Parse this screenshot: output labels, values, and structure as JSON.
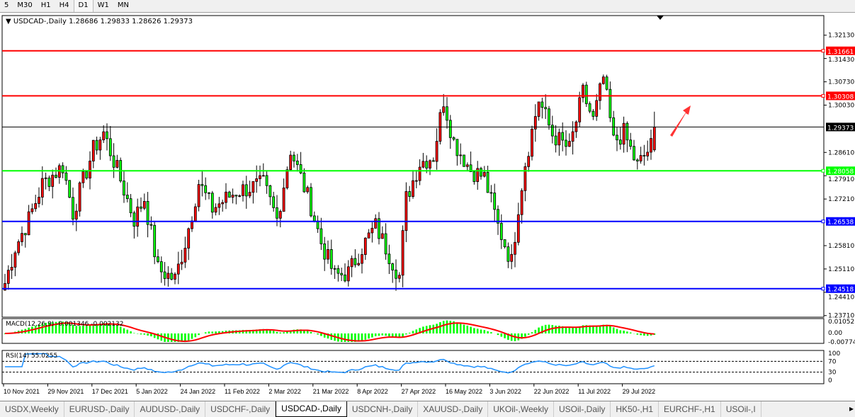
{
  "timeframes": [
    "5",
    "M30",
    "H1",
    "H4",
    "D1",
    "W1",
    "MN"
  ],
  "active_timeframe": "D1",
  "chart": {
    "symbol_label": "USDCAD-,Daily",
    "ohlc": "1.28686 1.29833 1.28626 1.29373"
  },
  "chart_data": {
    "type": "candlestick",
    "symbol": "USDCAD-",
    "period": "Daily",
    "price_ticks": [
      "1.32130",
      "1.31430",
      "1.30730",
      "1.30030",
      "1.28610",
      "1.27910",
      "1.27210",
      "1.25810",
      "1.25110",
      "1.24410",
      "1.23710"
    ],
    "ylim": [
      1.2371,
      1.3213
    ],
    "date_ticks": [
      "10 Nov 2021",
      "29 Nov 2021",
      "17 Dec 2021",
      "5 Jan 2022",
      "24 Jan 2022",
      "11 Feb 2022",
      "2 Mar 2022",
      "21 Mar 2022",
      "8 Apr 2022",
      "27 Apr 2022",
      "16 May 2022",
      "3 Jun 2022",
      "22 Jun 2022",
      "11 Jul 2022",
      "29 Jul 2022"
    ],
    "bar_count": 192,
    "close_keypoints": [
      [
        0,
        1.2468
      ],
      [
        3,
        1.2575
      ],
      [
        7,
        1.266
      ],
      [
        11,
        1.2766
      ],
      [
        17,
        1.282
      ],
      [
        20,
        1.268
      ],
      [
        26,
        1.287
      ],
      [
        29,
        1.292
      ],
      [
        33,
        1.2808
      ],
      [
        38,
        1.266
      ],
      [
        41,
        1.2723
      ],
      [
        45,
        1.251
      ],
      [
        50,
        1.248
      ],
      [
        53,
        1.259
      ],
      [
        57,
        1.277
      ],
      [
        61,
        1.2692
      ],
      [
        68,
        1.2744
      ],
      [
        76,
        1.2766
      ],
      [
        80,
        1.266
      ],
      [
        84,
        1.287
      ],
      [
        90,
        1.27
      ],
      [
        93,
        1.259
      ],
      [
        97,
        1.249
      ],
      [
        101,
        1.25
      ],
      [
        105,
        1.2575
      ],
      [
        109,
        1.264
      ],
      [
        116,
        1.249
      ],
      [
        118,
        1.2723
      ],
      [
        122,
        1.283
      ],
      [
        126,
        1.285
      ],
      [
        129,
        1.302
      ],
      [
        132,
        1.2893
      ],
      [
        137,
        1.2808
      ],
      [
        141,
        1.2787
      ],
      [
        145,
        1.264
      ],
      [
        149,
        1.2532
      ],
      [
        151,
        1.27
      ],
      [
        153,
        1.283
      ],
      [
        157,
        1.302
      ],
      [
        161,
        1.2915
      ],
      [
        166,
        1.287
      ],
      [
        170,
        1.304
      ],
      [
        173,
        1.2957
      ],
      [
        176,
        1.3085
      ],
      [
        179,
        1.2893
      ],
      [
        182,
        1.292
      ],
      [
        186,
        1.282
      ],
      [
        190,
        1.288
      ],
      [
        191,
        1.29373
      ]
    ],
    "last_bar": {
      "open": 1.28686,
      "high": 1.29833,
      "low": 1.28626,
      "close": 1.29373
    },
    "bull_color": "#ff0000",
    "bear_color": "#00ff00",
    "horizontal_lines": [
      {
        "price": 1.31661,
        "label": "1.31661",
        "color": "#ff0000"
      },
      {
        "price": 1.30308,
        "label": "1.30308",
        "color": "#ff0000"
      },
      {
        "price": 1.28058,
        "label": "1.28058",
        "color": "#00ff00"
      },
      {
        "price": 1.26538,
        "label": "1.26538",
        "color": "#0000ff"
      },
      {
        "price": 1.24518,
        "label": "1.24518",
        "color": "#0000ff"
      }
    ],
    "current_price": {
      "price": 1.29373,
      "label": "1.29373",
      "color": "#000000"
    },
    "annotation": "red up arrow",
    "macd": {
      "label": "MACD(12,26,9) -0.001346 -0.002132",
      "ticks": [
        "0.01052",
        "0.00",
        "-0.00774"
      ],
      "histogram_color": "#00ff00",
      "signal_color": "#ff0000"
    },
    "rsi": {
      "label": "RSI(14) 55.0255",
      "ticks": [
        "100",
        "70",
        "30",
        "0"
      ],
      "levels": [
        70,
        30
      ],
      "color": "#1e90ff"
    }
  },
  "tabs": [
    "USDX,Weekly",
    "EURUSD-,Daily",
    "AUDUSD-,Daily",
    "USDCHF-,Daily",
    "USDCAD-,Daily",
    "USDCNH-,Daily",
    "XAUUSD-,Daily",
    "UKOil-,Weekly",
    "USOil-,Daily",
    "HK50-,H1",
    "EURCHF-,H1",
    "USOil-,I"
  ],
  "active_tab": "USDCAD-,Daily"
}
